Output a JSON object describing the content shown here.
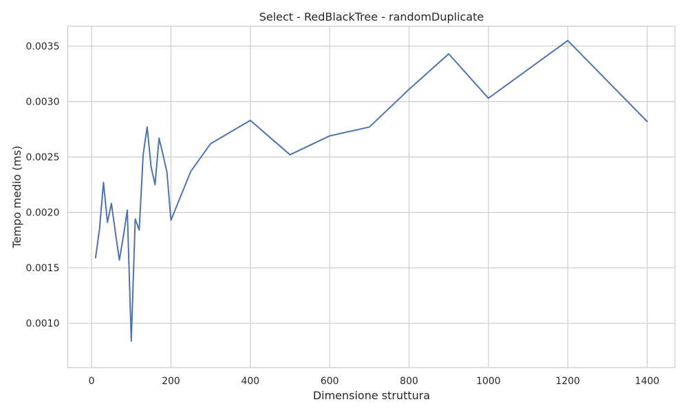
{
  "chart_data": {
    "type": "line",
    "title": "Select - RedBlackTree - randomDuplicate",
    "xlabel": "Dimensione struttura",
    "ylabel": "Tempo medio (ms)",
    "xlim": [
      -60,
      1470
    ],
    "ylim": [
      0.0006,
      0.00368
    ],
    "xticks": [
      0,
      200,
      400,
      600,
      800,
      1000,
      1200,
      1400
    ],
    "xtick_labels": [
      "0",
      "200",
      "400",
      "600",
      "800",
      "1000",
      "1200",
      "1400"
    ],
    "yticks": [
      0.001,
      0.0015,
      0.002,
      0.0025,
      0.003,
      0.0035
    ],
    "ytick_labels": [
      "0.0010",
      "0.0015",
      "0.0020",
      "0.0025",
      "0.0030",
      "0.0035"
    ],
    "grid": true,
    "series_color": "#4c72b0",
    "grid_color": "#cccccc",
    "series": [
      {
        "x": [
          10,
          20,
          30,
          40,
          50,
          60,
          70,
          80,
          90,
          100,
          110,
          120,
          130,
          140,
          150,
          160,
          170,
          180,
          190,
          200,
          250,
          300,
          400,
          500,
          600,
          700,
          800,
          900,
          1000,
          1200,
          1400
        ],
        "values": [
          0.00159,
          0.00185,
          0.00227,
          0.00191,
          0.00208,
          0.00182,
          0.00157,
          0.00178,
          0.00202,
          0.00084,
          0.00194,
          0.00184,
          0.00252,
          0.00277,
          0.00241,
          0.00225,
          0.00267,
          0.00252,
          0.00236,
          0.00193,
          0.00237,
          0.00262,
          0.00283,
          0.00252,
          0.00269,
          0.00277,
          0.00311,
          0.00343,
          0.00303,
          0.00355,
          0.00282
        ]
      }
    ]
  }
}
